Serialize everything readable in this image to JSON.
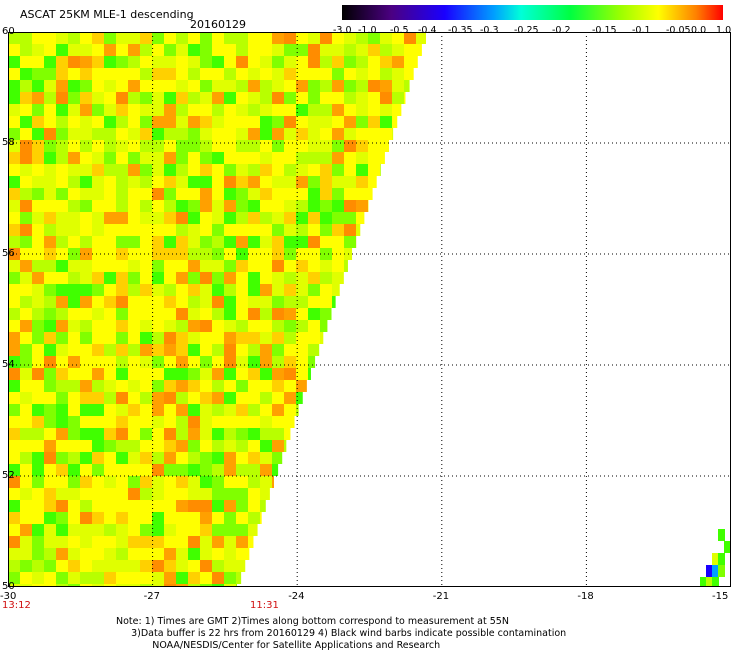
{
  "header": {
    "title": "ASCAT 25KM MLE-1 descending",
    "date": "20160129"
  },
  "colorbar": {
    "labels": [
      "-3.0",
      "-1.0",
      "-0.5",
      "-0.4",
      "-0.35",
      "-0.3",
      "-0.25",
      "-0.2",
      "-0.15",
      "-0.1",
      "-0.05",
      "0.0",
      "1.0"
    ],
    "colors": [
      "#000000",
      "#4b0082",
      "#1a00ff",
      "#00a0ff",
      "#00ffd8",
      "#00ff40",
      "#9aff00",
      "#ffff00",
      "#ff8000",
      "#ff0000"
    ]
  },
  "map": {
    "lon_range": [
      -30,
      -15
    ],
    "lat_range": [
      50,
      60
    ],
    "lon_ticks": [
      "-30",
      "-27",
      "-24",
      "-21",
      "-18",
      "-15"
    ],
    "lat_ticks": [
      "60",
      "58",
      "56",
      "54",
      "52",
      "50"
    ],
    "grid": true,
    "swath_colors": [
      "#ffff00",
      "#e0ff00",
      "#b8ff00",
      "#80ff00",
      "#40ff00",
      "#ffd000",
      "#ffa000",
      "#ff8c00"
    ]
  },
  "times": {
    "left": "13:12",
    "middle": "11:31"
  },
  "note": {
    "line1": "Note: 1) Times are GMT 2)Times along bottom correspond to measurement at 55N",
    "line2": "3)Data buffer is 22 hrs from 20160129 4) Black wind barbs indicate possible contamination",
    "line3": "NOAA/NESDIS/Center for Satellite Applications and Research"
  }
}
